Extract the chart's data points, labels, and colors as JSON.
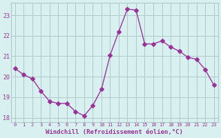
{
  "x": [
    0,
    1,
    2,
    3,
    4,
    5,
    6,
    7,
    8,
    9,
    10,
    11,
    12,
    13,
    14,
    15,
    16,
    17,
    18,
    19,
    20,
    21,
    22,
    23
  ],
  "y": [
    20.4,
    20.1,
    19.9,
    19.3,
    18.8,
    18.7,
    18.7,
    18.3,
    18.1,
    18.6,
    19.4,
    21.05,
    22.2,
    23.3,
    23.25,
    21.6,
    21.6,
    21.75,
    21.45,
    21.25,
    20.95,
    20.85,
    20.35,
    19.6
  ],
  "line_color": "#993399",
  "marker": "D",
  "markersize": 3,
  "bg_color": "#d8f0f0",
  "grid_color": "#b0c8c8",
  "xlabel": "Windchill (Refroidissement éolien,°C)",
  "ylim": [
    17.8,
    23.6
  ],
  "xlim": [
    -0.5,
    23.5
  ],
  "yticks": [
    18,
    19,
    20,
    21,
    22,
    23
  ],
  "xticks": [
    0,
    1,
    2,
    3,
    4,
    5,
    6,
    7,
    8,
    9,
    10,
    11,
    12,
    13,
    14,
    15,
    16,
    17,
    18,
    19,
    20,
    21,
    22,
    23
  ],
  "tick_color": "#993399",
  "label_color": "#993399"
}
